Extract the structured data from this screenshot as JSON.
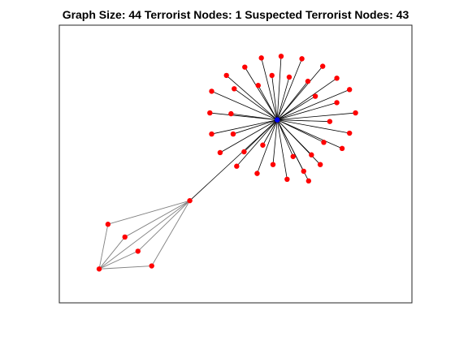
{
  "chart_data": {
    "type": "network",
    "title": "Graph Size:  44 Terrorist Nodes:  1 Suspected Terrorist Nodes:  43",
    "grid": false,
    "colors": {
      "terrorist_node": "#0000ff",
      "suspected_node": "#ff0000",
      "edge_strong": "#000000",
      "edge_light": "#808080",
      "axes_box": "#262626"
    },
    "xlim": [
      0,
      100
    ],
    "ylim": [
      0,
      100
    ],
    "nodes": [
      {
        "id": 0,
        "group": "terrorist",
        "x": 61.8,
        "y": 65.9
      },
      {
        "id": 1,
        "group": "suspected",
        "x": 37.0,
        "y": 36.8
      },
      {
        "id": 2,
        "group": "suspected",
        "x": 13.8,
        "y": 28.3
      },
      {
        "id": 3,
        "group": "suspected",
        "x": 18.6,
        "y": 23.7
      },
      {
        "id": 4,
        "group": "suspected",
        "x": 22.3,
        "y": 18.6
      },
      {
        "id": 5,
        "group": "suspected",
        "x": 26.2,
        "y": 13.3
      },
      {
        "id": 6,
        "group": "suspected",
        "x": 11.3,
        "y": 12.2
      },
      {
        "id": 7,
        "group": "suspected",
        "x": 57.3,
        "y": 88.2
      },
      {
        "id": 8,
        "group": "suspected",
        "x": 62.9,
        "y": 88.8
      },
      {
        "id": 9,
        "group": "suspected",
        "x": 68.8,
        "y": 87.9
      },
      {
        "id": 10,
        "group": "suspected",
        "x": 74.7,
        "y": 85.2
      },
      {
        "id": 11,
        "group": "suspected",
        "x": 52.6,
        "y": 84.9
      },
      {
        "id": 12,
        "group": "suspected",
        "x": 47.4,
        "y": 81.9
      },
      {
        "id": 13,
        "group": "suspected",
        "x": 78.7,
        "y": 80.9
      },
      {
        "id": 14,
        "group": "suspected",
        "x": 60.3,
        "y": 81.9
      },
      {
        "id": 15,
        "group": "suspected",
        "x": 65.2,
        "y": 81.3
      },
      {
        "id": 16,
        "group": "suspected",
        "x": 70.5,
        "y": 79.8
      },
      {
        "id": 17,
        "group": "suspected",
        "x": 56.4,
        "y": 78.3
      },
      {
        "id": 18,
        "group": "suspected",
        "x": 82.3,
        "y": 76.8
      },
      {
        "id": 19,
        "group": "suspected",
        "x": 43.2,
        "y": 76.2
      },
      {
        "id": 20,
        "group": "suspected",
        "x": 49.6,
        "y": 77.1
      },
      {
        "id": 21,
        "group": "suspected",
        "x": 72.6,
        "y": 74.4
      },
      {
        "id": 22,
        "group": "suspected",
        "x": 78.7,
        "y": 72.1
      },
      {
        "id": 23,
        "group": "suspected",
        "x": 42.7,
        "y": 68.4
      },
      {
        "id": 24,
        "group": "suspected",
        "x": 48.7,
        "y": 68.1
      },
      {
        "id": 25,
        "group": "suspected",
        "x": 84.0,
        "y": 68.4
      },
      {
        "id": 26,
        "group": "suspected",
        "x": 76.7,
        "y": 65.3
      },
      {
        "id": 27,
        "group": "suspected",
        "x": 43.2,
        "y": 60.8
      },
      {
        "id": 28,
        "group": "suspected",
        "x": 49.3,
        "y": 60.8
      },
      {
        "id": 29,
        "group": "suspected",
        "x": 82.3,
        "y": 61.1
      },
      {
        "id": 30,
        "group": "suspected",
        "x": 75.0,
        "y": 57.8
      },
      {
        "id": 31,
        "group": "suspected",
        "x": 80.2,
        "y": 55.6
      },
      {
        "id": 32,
        "group": "suspected",
        "x": 45.6,
        "y": 54.1
      },
      {
        "id": 33,
        "group": "suspected",
        "x": 52.4,
        "y": 54.4
      },
      {
        "id": 34,
        "group": "suspected",
        "x": 57.7,
        "y": 56.8
      },
      {
        "id": 35,
        "group": "suspected",
        "x": 66.3,
        "y": 52.7
      },
      {
        "id": 36,
        "group": "suspected",
        "x": 71.5,
        "y": 53.3
      },
      {
        "id": 37,
        "group": "suspected",
        "x": 50.3,
        "y": 49.2
      },
      {
        "id": 38,
        "group": "suspected",
        "x": 60.6,
        "y": 49.8
      },
      {
        "id": 39,
        "group": "suspected",
        "x": 74.0,
        "y": 49.8
      },
      {
        "id": 40,
        "group": "suspected",
        "x": 69.3,
        "y": 47.4
      },
      {
        "id": 41,
        "group": "suspected",
        "x": 56.1,
        "y": 46.6
      },
      {
        "id": 42,
        "group": "suspected",
        "x": 64.6,
        "y": 44.5
      },
      {
        "id": 43,
        "group": "suspected",
        "x": 70.7,
        "y": 43.9
      }
    ],
    "edges": [
      {
        "source": 0,
        "target": 1,
        "style": "strong"
      },
      {
        "source": 0,
        "target": 7,
        "style": "strong"
      },
      {
        "source": 0,
        "target": 8,
        "style": "strong"
      },
      {
        "source": 0,
        "target": 9,
        "style": "strong"
      },
      {
        "source": 0,
        "target": 10,
        "style": "strong"
      },
      {
        "source": 0,
        "target": 11,
        "style": "strong"
      },
      {
        "source": 0,
        "target": 12,
        "style": "strong"
      },
      {
        "source": 0,
        "target": 13,
        "style": "strong"
      },
      {
        "source": 0,
        "target": 14,
        "style": "strong"
      },
      {
        "source": 0,
        "target": 15,
        "style": "strong"
      },
      {
        "source": 0,
        "target": 16,
        "style": "strong"
      },
      {
        "source": 0,
        "target": 17,
        "style": "strong"
      },
      {
        "source": 0,
        "target": 18,
        "style": "strong"
      },
      {
        "source": 0,
        "target": 19,
        "style": "strong"
      },
      {
        "source": 0,
        "target": 20,
        "style": "strong"
      },
      {
        "source": 0,
        "target": 21,
        "style": "strong"
      },
      {
        "source": 0,
        "target": 22,
        "style": "strong"
      },
      {
        "source": 0,
        "target": 23,
        "style": "strong"
      },
      {
        "source": 0,
        "target": 24,
        "style": "strong"
      },
      {
        "source": 0,
        "target": 25,
        "style": "strong"
      },
      {
        "source": 0,
        "target": 26,
        "style": "strong"
      },
      {
        "source": 0,
        "target": 27,
        "style": "strong"
      },
      {
        "source": 0,
        "target": 28,
        "style": "strong"
      },
      {
        "source": 0,
        "target": 29,
        "style": "strong"
      },
      {
        "source": 0,
        "target": 30,
        "style": "strong"
      },
      {
        "source": 0,
        "target": 31,
        "style": "strong"
      },
      {
        "source": 0,
        "target": 32,
        "style": "strong"
      },
      {
        "source": 0,
        "target": 33,
        "style": "strong"
      },
      {
        "source": 0,
        "target": 34,
        "style": "strong"
      },
      {
        "source": 0,
        "target": 35,
        "style": "strong"
      },
      {
        "source": 0,
        "target": 36,
        "style": "strong"
      },
      {
        "source": 0,
        "target": 37,
        "style": "strong"
      },
      {
        "source": 0,
        "target": 38,
        "style": "strong"
      },
      {
        "source": 0,
        "target": 39,
        "style": "strong"
      },
      {
        "source": 0,
        "target": 40,
        "style": "strong"
      },
      {
        "source": 0,
        "target": 41,
        "style": "strong"
      },
      {
        "source": 0,
        "target": 42,
        "style": "strong"
      },
      {
        "source": 0,
        "target": 43,
        "style": "strong"
      },
      {
        "source": 1,
        "target": 2,
        "style": "light"
      },
      {
        "source": 1,
        "target": 3,
        "style": "light"
      },
      {
        "source": 1,
        "target": 4,
        "style": "light"
      },
      {
        "source": 1,
        "target": 5,
        "style": "light"
      },
      {
        "source": 1,
        "target": 6,
        "style": "light"
      },
      {
        "source": 6,
        "target": 2,
        "style": "light"
      },
      {
        "source": 6,
        "target": 3,
        "style": "light"
      },
      {
        "source": 6,
        "target": 4,
        "style": "light"
      },
      {
        "source": 6,
        "target": 5,
        "style": "light"
      }
    ]
  }
}
